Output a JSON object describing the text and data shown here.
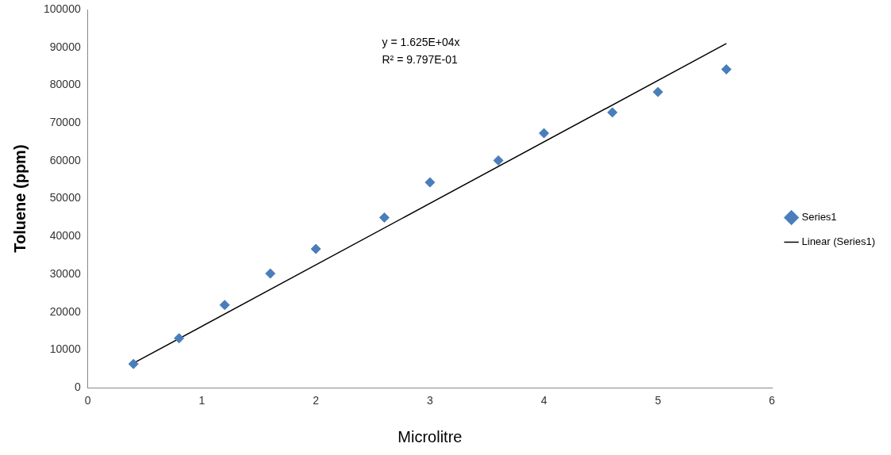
{
  "chart_data": {
    "type": "scatter",
    "xlabel": "Microlitre",
    "ylabel": "Toluene (ppm)",
    "xlim": [
      0,
      6
    ],
    "xticks": [
      0,
      1,
      2,
      3,
      4,
      5,
      6
    ],
    "ylim": [
      0,
      100000
    ],
    "yticks": [
      0,
      10000,
      20000,
      30000,
      40000,
      50000,
      60000,
      70000,
      80000,
      90000,
      100000
    ],
    "grid": false,
    "legend": "right",
    "annotations": [
      "y = 1.625E+04x",
      "R² = 9.797E-01"
    ],
    "series": [
      {
        "name": "Series1",
        "marker": "diamond",
        "color": "#4a7ebb",
        "x": [
          0.4,
          0.8,
          1.2,
          1.6,
          2.0,
          2.6,
          3.0,
          3.6,
          4.0,
          4.6,
          5.0,
          5.6
        ],
        "values": [
          6300,
          13100,
          21900,
          30200,
          36700,
          45000,
          54300,
          60100,
          67300,
          72800,
          78200,
          84200
        ]
      },
      {
        "name": "Linear (Series1)",
        "type": "line",
        "marker": "none",
        "line_style": "solid",
        "color": "#000000",
        "x": [
          0.4,
          5.6
        ],
        "values": [
          6500,
          91000
        ]
      }
    ]
  }
}
